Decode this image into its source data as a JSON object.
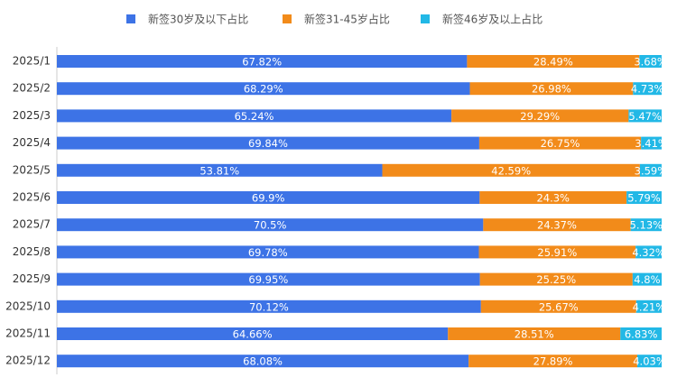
{
  "chart_data": {
    "type": "bar",
    "orientation": "horizontal",
    "stacked": true,
    "categories": [
      "2025/1",
      "2025/2",
      "2025/3",
      "2025/4",
      "2025/5",
      "2025/6",
      "2025/7",
      "2025/8",
      "2025/9",
      "2025/10",
      "2025/11",
      "2025/12"
    ],
    "xlim": [
      0,
      100
    ],
    "legend": "top",
    "series": [
      {
        "name": "新签30岁及以下占比",
        "color": "#3d73e6",
        "values": [
          67.82,
          68.29,
          65.24,
          69.84,
          53.81,
          69.9,
          70.5,
          69.78,
          69.95,
          70.12,
          64.66,
          68.08
        ],
        "value_labels": [
          "67.82%",
          "68.29%",
          "65.24%",
          "69.84%",
          "53.81%",
          "69.9%",
          "70.5%",
          "69.78%",
          "69.95%",
          "70.12%",
          "64.66%",
          "68.08%"
        ]
      },
      {
        "name": "新签31-45岁占比",
        "color": "#f28b1a",
        "values": [
          28.49,
          26.98,
          29.29,
          26.75,
          42.59,
          24.3,
          24.37,
          25.91,
          25.25,
          25.67,
          28.51,
          27.89
        ],
        "value_labels": [
          "28.49%",
          "26.98%",
          "29.29%",
          "26.75%",
          "42.59%",
          "24.3%",
          "24.37%",
          "25.91%",
          "25.25%",
          "25.67%",
          "28.51%",
          "27.89%"
        ]
      },
      {
        "name": "新签46岁及以上占比",
        "color": "#22b8e6",
        "values": [
          3.68,
          4.73,
          5.47,
          3.41,
          3.59,
          5.79,
          5.13,
          4.32,
          4.8,
          4.21,
          6.83,
          4.03
        ],
        "value_labels": [
          "3.68%",
          "4.73%",
          "5.47%",
          "3.41%",
          "3.59%",
          "5.79%",
          "5.13%",
          "4.32%",
          "4.8%",
          "4.21%",
          "6.83%",
          "4.03%"
        ]
      }
    ]
  }
}
